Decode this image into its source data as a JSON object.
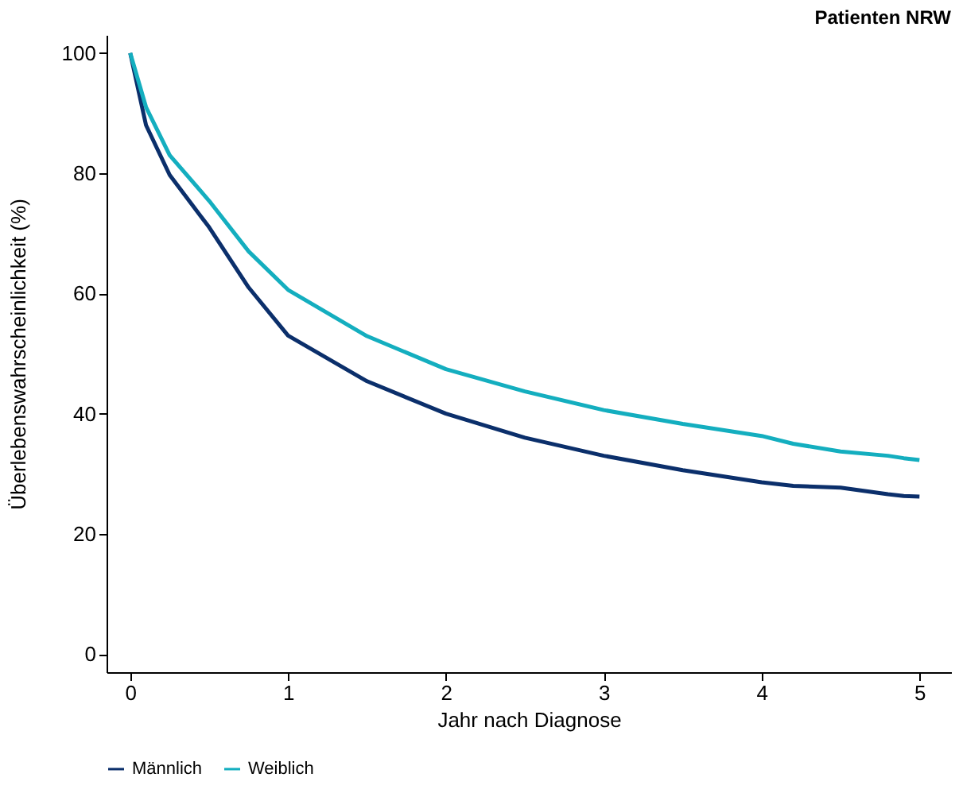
{
  "chart_data": {
    "type": "line",
    "title": "Patienten NRW",
    "xlabel": "Jahr nach Diagnose",
    "ylabel": "Überlebenswahrscheinlichkeit (%)",
    "x": [
      0,
      0.1,
      0.25,
      0.5,
      0.75,
      1,
      1.5,
      2,
      2.5,
      3,
      3.5,
      4,
      4.2,
      4.5,
      4.8,
      4.9,
      5
    ],
    "series": [
      {
        "name": "Männlich",
        "color": "#0b2f6b",
        "values": [
          100,
          88,
          79.7,
          71,
          61,
          53,
          45.4,
          40,
          36,
          33,
          30.6,
          28.6,
          28,
          27.7,
          26.6,
          26.3,
          26.2
        ]
      },
      {
        "name": "Weiblich",
        "color": "#14aebf",
        "values": [
          100,
          91,
          83,
          75.4,
          67,
          60.6,
          52.9,
          47.4,
          43.7,
          40.6,
          38.3,
          36.3,
          35,
          33.7,
          33,
          32.6,
          32.3
        ]
      }
    ],
    "xlim": [
      -0.15,
      5.2
    ],
    "xticks": [
      0,
      1,
      2,
      3,
      4,
      5
    ],
    "ylim": [
      -3,
      103
    ],
    "yticks": [
      0,
      20,
      40,
      60,
      80,
      100
    ],
    "grid": false,
    "legend": "bottom",
    "marker": "none",
    "line_style": "solid"
  }
}
